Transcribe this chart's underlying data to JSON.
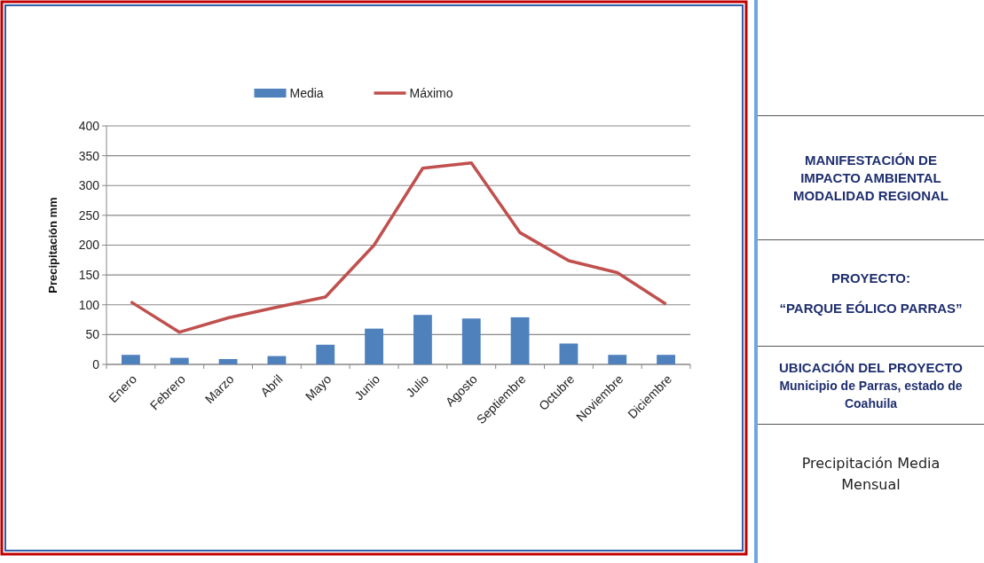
{
  "chart_data": {
    "type": "bar",
    "title": "Precipitación Media Mensual",
    "ylabel": "Precipitación mm",
    "categories": [
      "Enero",
      "Febrero",
      "Marzo",
      "Abril",
      "Mayo",
      "Junio",
      "Julio",
      "Agosto",
      "Septiembre",
      "Octubre",
      "Noviembre",
      "Diciembre"
    ],
    "series": [
      {
        "name": "Media",
        "color": "#4f81bd",
        "values": [
          16,
          11,
          9,
          14,
          33,
          60,
          83,
          77,
          79,
          35,
          16,
          16
        ]
      },
      {
        "name": "Máximo",
        "type": "line",
        "color": "#c0504d",
        "values": [
          105,
          54,
          78,
          96,
          113,
          200,
          329,
          338,
          221,
          174,
          154,
          101
        ]
      }
    ],
    "ylim": [
      0,
      400
    ],
    "yticks": [
      0,
      50,
      100,
      150,
      200,
      250,
      300,
      350,
      400
    ],
    "grid": "y",
    "legend": "top",
    "marker": "none",
    "annotations": [
      "MANIFESTACIÓN DE IMPACTO AMBIENTAL MODALIDAD REGIONAL",
      "PROYECTO:",
      "“PARQUE EÓLICO PARRAS”",
      "UBICACIÓN DEL PROYECTO",
      "Municipio de Parras, estado de Coahuila"
    ]
  }
}
